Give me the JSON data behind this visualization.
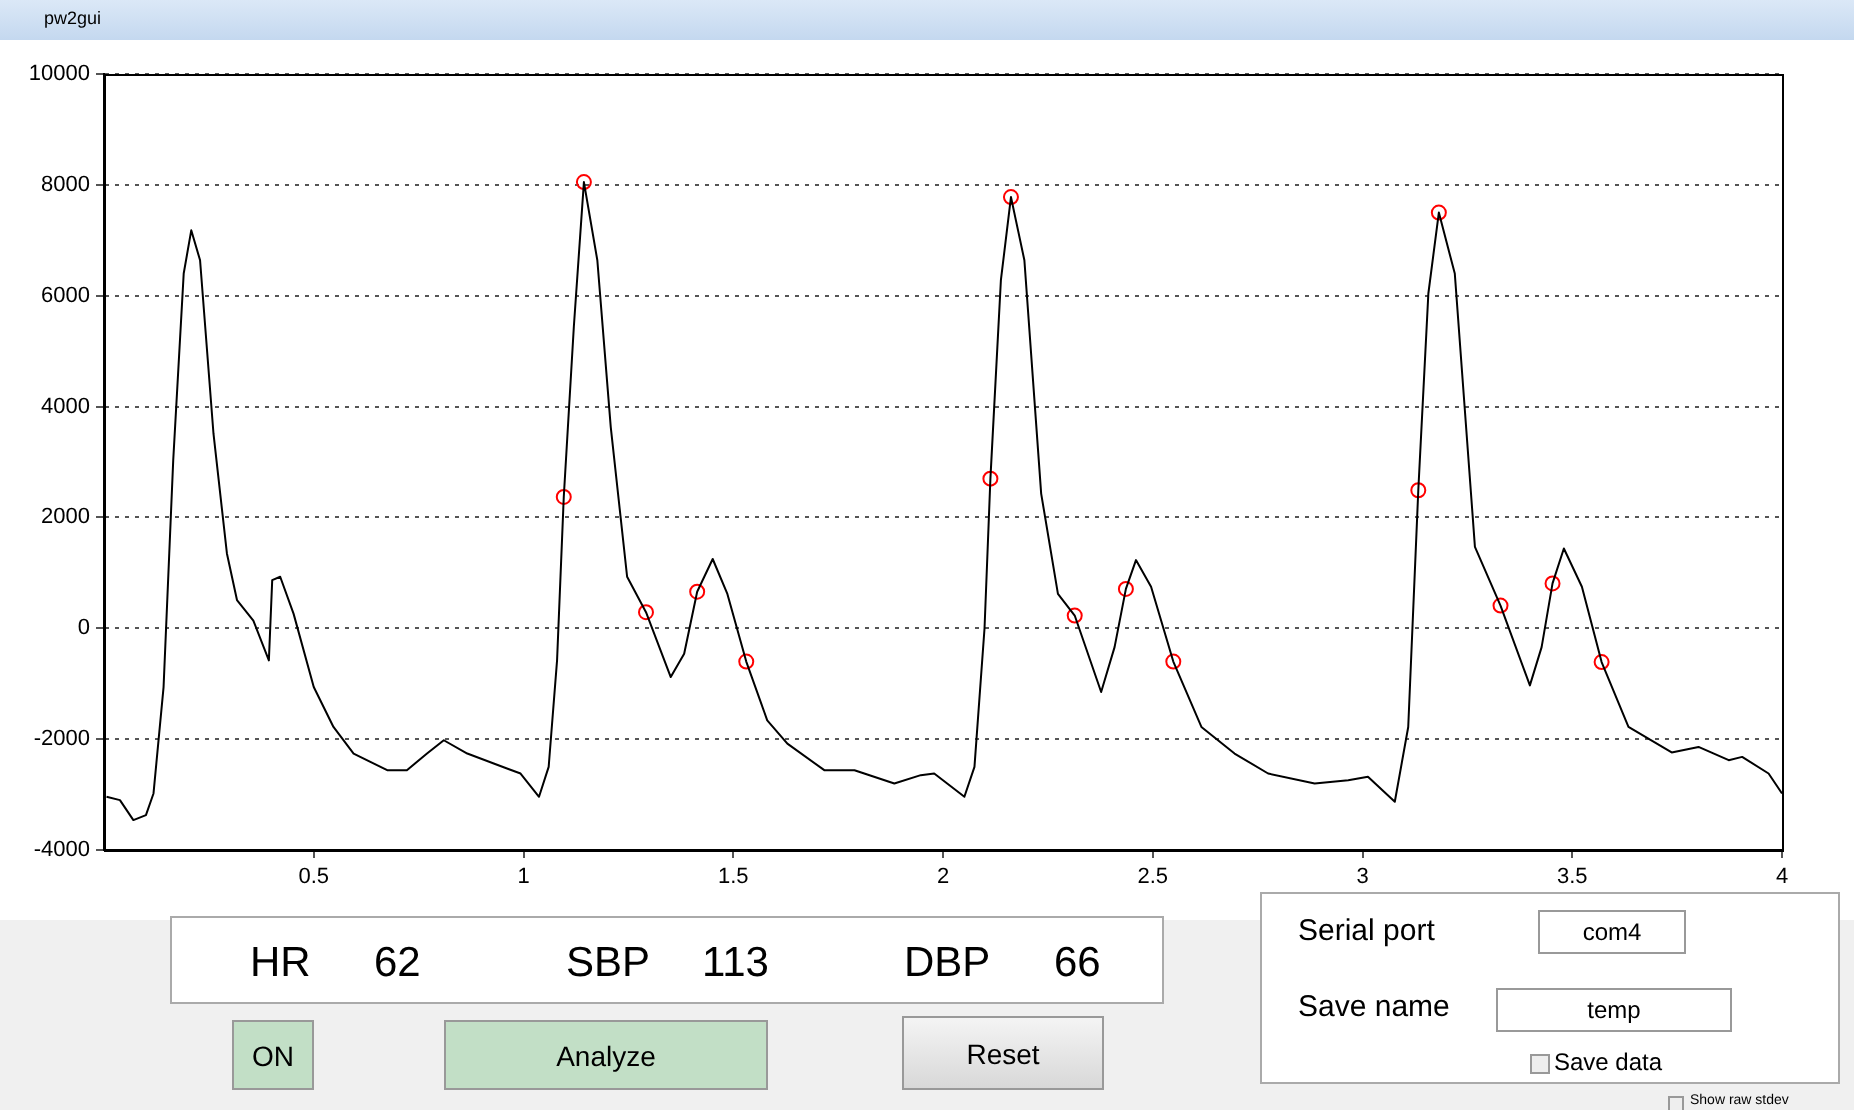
{
  "chart_data": {
    "type": "line",
    "title": "pw2gui",
    "xlim": [
      0,
      4
    ],
    "xticks": [
      0.5,
      1,
      1.5,
      2,
      2.5,
      3,
      3.5,
      4
    ],
    "ylim": [
      -4000,
      10000
    ],
    "yticks": [
      -4000,
      -2000,
      0,
      2000,
      4000,
      6000,
      8000,
      10000
    ],
    "grid": "y",
    "legend": false,
    "series": [
      {
        "type": "line",
        "color": "#000000",
        "marker": "none",
        "x": [
          0.006,
          0.038,
          0.07,
          0.1,
          0.118,
          0.142,
          0.165,
          0.19,
          0.208,
          0.229,
          0.261,
          0.293,
          0.317,
          0.356,
          0.393,
          0.401,
          0.42,
          0.452,
          0.5,
          0.547,
          0.595,
          0.675,
          0.722,
          0.77,
          0.81,
          0.866,
          0.929,
          0.993,
          1.037,
          1.06,
          1.08,
          1.096,
          1.12,
          1.144,
          1.176,
          1.208,
          1.247,
          1.292,
          1.351,
          1.383,
          1.414,
          1.451,
          1.486,
          1.531,
          1.581,
          1.629,
          1.717,
          1.789,
          1.884,
          1.947,
          1.979,
          2.051,
          2.075,
          2.099,
          2.113,
          2.138,
          2.162,
          2.194,
          2.234,
          2.274,
          2.314,
          2.377,
          2.409,
          2.436,
          2.46,
          2.496,
          2.549,
          2.616,
          2.695,
          2.775,
          2.886,
          2.966,
          3.013,
          3.077,
          3.109,
          3.133,
          3.157,
          3.182,
          3.22,
          3.268,
          3.329,
          3.399,
          3.427,
          3.453,
          3.48,
          3.523,
          3.57,
          3.634,
          3.737,
          3.801,
          3.873,
          3.905,
          3.968,
          4.0
        ],
        "values": [
          -3040,
          -3100,
          -3460,
          -3370,
          -2980,
          -1060,
          3030,
          6400,
          7180,
          6640,
          3510,
          1350,
          510,
          140,
          -580,
          870,
          930,
          260,
          -1060,
          -1780,
          -2260,
          -2560,
          -2560,
          -2260,
          -2020,
          -2260,
          -2440,
          -2620,
          -3040,
          -2500,
          -580,
          2370,
          5440,
          8050,
          6640,
          3630,
          930,
          290,
          -880,
          -460,
          660,
          1250,
          620,
          -600,
          -1660,
          -2080,
          -2560,
          -2560,
          -2800,
          -2650,
          -2620,
          -3040,
          -2500,
          0,
          2700,
          6280,
          7780,
          6640,
          2430,
          620,
          230,
          -1150,
          -340,
          710,
          1230,
          750,
          -600,
          -1780,
          -2260,
          -2620,
          -2800,
          -2740,
          -2680,
          -3130,
          -1780,
          2490,
          6040,
          7500,
          6400,
          1470,
          410,
          -1030,
          -340,
          810,
          1440,
          750,
          -610,
          -1780,
          -2240,
          -2140,
          -2380,
          -2320,
          -2620,
          -2980
        ]
      },
      {
        "type": "scatter",
        "color": "#ff0000",
        "marker": "circle",
        "x": [
          1.096,
          1.144,
          1.292,
          1.414,
          1.531,
          2.113,
          2.162,
          2.314,
          2.436,
          2.549,
          3.133,
          3.182,
          3.329,
          3.453,
          3.57
        ],
        "values": [
          2370,
          8050,
          290,
          660,
          -600,
          2700,
          7780,
          230,
          710,
          -600,
          2490,
          7500,
          410,
          810,
          -610
        ]
      }
    ],
    "annotations": [
      "HR",
      "62",
      "SBP",
      "113",
      "DBP",
      "66",
      "ON",
      "Analyze",
      "Reset",
      "Serial port",
      "com4",
      "Save name",
      "temp",
      "Save data",
      "Show raw stdev"
    ]
  }
}
